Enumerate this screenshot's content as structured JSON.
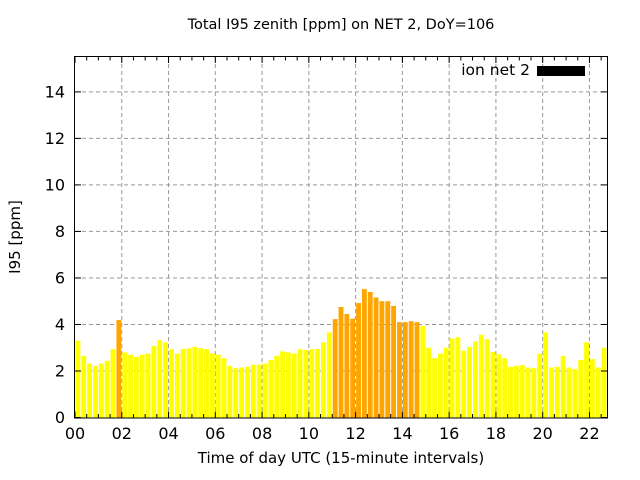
{
  "title": "Total I95 zenith [ppm] on NET 2, DoY=106",
  "legend": {
    "label": "ion net 2",
    "swatch_color": "#000000"
  },
  "colors": {
    "background": "#ffffff",
    "axis": "#000000",
    "grid": "#9a9a9a",
    "bar_yellow": "#ffff00",
    "bar_orange": "#ffa500",
    "text": "#000000"
  },
  "chart_data": {
    "type": "bar",
    "title": "Total I95 zenith [ppm] on NET 2, DoY=106",
    "xlabel": "Time of day UTC (15-minute intervals)",
    "ylabel": "I95 [ppm]",
    "xlim": [
      0,
      22.75
    ],
    "ylim": [
      0,
      15.5
    ],
    "grid": true,
    "legend_position": "top-right-inside",
    "xticks": {
      "labels": [
        "00",
        "02",
        "04",
        "06",
        "08",
        "10",
        "12",
        "14",
        "16",
        "18",
        "20",
        "22"
      ],
      "positions": [
        0,
        2,
        4,
        6,
        8,
        10,
        12,
        14,
        16,
        18,
        20,
        22
      ],
      "minor_step_hours": 0.5
    },
    "yticks": [
      0,
      2,
      4,
      6,
      8,
      10,
      12,
      14
    ],
    "series": [
      {
        "name": "ion net 2",
        "start_time_utc": "00:00",
        "interval_minutes": 15,
        "bar_width_hours": 0.25,
        "values": [
          3.3,
          2.65,
          2.32,
          2.22,
          2.32,
          2.44,
          2.94,
          4.19,
          2.8,
          2.7,
          2.61,
          2.7,
          2.75,
          3.08,
          3.33,
          3.23,
          2.94,
          2.75,
          2.94,
          2.98,
          3.04,
          2.98,
          2.94,
          2.75,
          2.7,
          2.55,
          2.22,
          2.12,
          2.15,
          2.18,
          2.27,
          2.27,
          2.32,
          2.47,
          2.65,
          2.84,
          2.8,
          2.75,
          2.94,
          2.9,
          2.94,
          2.94,
          3.23,
          3.66,
          4.23,
          4.75,
          4.45,
          4.25,
          4.92,
          5.52,
          5.4,
          5.16,
          5.0,
          5.0,
          4.8,
          4.1,
          4.1,
          4.14,
          4.1,
          3.93,
          3.0,
          2.55,
          2.75,
          3.0,
          3.4,
          3.45,
          2.87,
          3.04,
          3.27,
          3.56,
          3.37,
          2.82,
          2.72,
          2.54,
          2.18,
          2.22,
          2.25,
          2.15,
          2.12,
          2.75,
          3.66,
          2.15,
          2.18,
          2.65,
          2.15,
          2.08,
          2.47,
          3.23,
          2.51,
          2.15,
          3.0
        ],
        "highlight_indices": [
          7,
          44,
          45,
          46,
          47,
          48,
          49,
          50,
          51,
          52,
          53,
          54,
          55,
          56,
          57,
          58
        ]
      }
    ]
  }
}
